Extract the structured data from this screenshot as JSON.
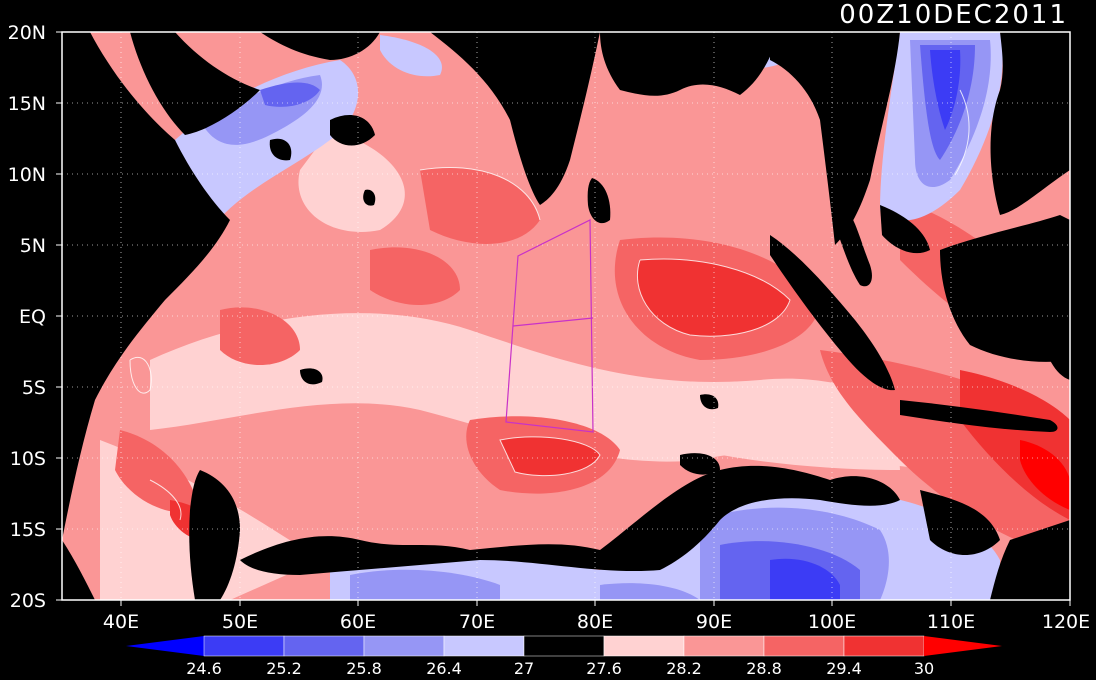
{
  "title": "00Z10DEC2011",
  "axes": {
    "lon_ticks": [
      "40E",
      "50E",
      "60E",
      "70E",
      "80E",
      "90E",
      "100E",
      "110E",
      "120E"
    ],
    "lat_ticks": [
      "20N",
      "15N",
      "10N",
      "5N",
      "EQ",
      "5S",
      "10S",
      "15S",
      "20S"
    ]
  },
  "colorbar": {
    "levels": [
      "24.6",
      "25.2",
      "25.8",
      "26.4",
      "27",
      "27.6",
      "28.2",
      "28.8",
      "29.4",
      "30"
    ],
    "colors": [
      "#0000ff",
      "#3c3cf5",
      "#6464f0",
      "#9696f5",
      "#c8c8ff",
      "#000000",
      "#ffd2d2",
      "#fa9696",
      "#f56464",
      "#f03232",
      "#ff0000"
    ]
  },
  "map": {
    "region": "Indian Ocean",
    "lon_range": [
      35,
      120
    ],
    "lat_range": [
      -20,
      20
    ],
    "land_color": "#000000",
    "box_color": "#c832c8"
  }
}
